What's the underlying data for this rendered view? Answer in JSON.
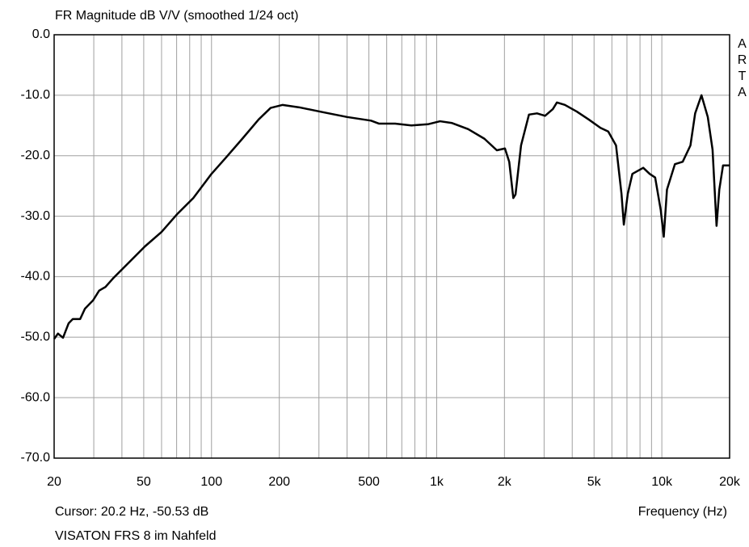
{
  "chart_data": {
    "type": "line",
    "title": "FR Magnitude dB V/V (smoothed 1/24 oct)",
    "watermark": "ARTA",
    "cursor_text": "Cursor: 20.2 Hz, -50.53 dB",
    "xlabel": "Frequency (Hz)",
    "footer": "VISATON FRS 8 im Nahfeld",
    "xscale": "log",
    "grid": true,
    "color": "#000000",
    "xlim": [
      20,
      20000
    ],
    "ylim": [
      -70,
      0
    ],
    "xticks": [
      20,
      50,
      100,
      200,
      500,
      {
        "value": 1000,
        "label": "1k"
      },
      {
        "value": 2000,
        "label": "2k"
      },
      {
        "value": 5000,
        "label": "5k"
      },
      {
        "value": 10000,
        "label": "10k"
      },
      {
        "value": 20000,
        "label": "20k"
      }
    ],
    "x_minor_ticks": [
      30,
      40,
      60,
      70,
      80,
      90,
      300,
      400,
      600,
      700,
      800,
      900,
      3000,
      4000,
      6000,
      7000,
      8000,
      9000
    ],
    "yticks": [
      {
        "value": 0,
        "label": "0.0"
      },
      {
        "value": -10,
        "label": "-10.0"
      },
      {
        "value": -20,
        "label": "-20.0"
      },
      {
        "value": -30,
        "label": "-30.0"
      },
      {
        "value": -40,
        "label": "-40.0"
      },
      {
        "value": -50,
        "label": "-50.0"
      },
      {
        "value": -60,
        "label": "-60.0"
      },
      {
        "value": -70,
        "label": "-70.0"
      }
    ],
    "x": [
      20,
      20.8,
      21.9,
      23.2,
      24.2,
      26.1,
      27.4,
      29.8,
      31.7,
      33.8,
      36.5,
      43.1,
      50.6,
      60,
      70.6,
      83,
      100,
      116,
      137,
      162,
      183,
      207,
      245,
      312,
      400,
      511,
      555,
      654,
      773,
      914,
      1035,
      1170,
      1380,
      1630,
      1850,
      2010,
      2100,
      2190,
      2240,
      2370,
      2570,
      2790,
      3030,
      3280,
      3420,
      3710,
      4190,
      4730,
      5340,
      5780,
      6260,
      6620,
      6780,
      7060,
      7400,
      8270,
      8830,
      9340,
      9890,
      10200,
      10540,
      11430,
      12380,
      13400,
      14060,
      15000,
      16000,
      16800,
      17500,
      18000,
      18700,
      20000
    ],
    "values": [
      -50.3,
      -49.4,
      -50.1,
      -47.7,
      -47,
      -47,
      -45.3,
      -43.9,
      -42.3,
      -41.7,
      -40.3,
      -37.6,
      -35,
      -32.6,
      -29.6,
      -27,
      -23,
      -20.3,
      -17.2,
      -14,
      -12.1,
      -11.6,
      -12,
      -12.8,
      -13.6,
      -14.2,
      -14.7,
      -14.7,
      -15,
      -14.8,
      -14.3,
      -14.6,
      -15.6,
      -17.2,
      -19.1,
      -18.8,
      -21,
      -27,
      -26.4,
      -18.3,
      -13.2,
      -13,
      -13.4,
      -12.3,
      -11.2,
      -11.6,
      -12.7,
      -14,
      -15.4,
      -16,
      -18.3,
      -26.3,
      -31.4,
      -26.3,
      -23,
      -22,
      -23,
      -23.6,
      -29,
      -33.4,
      -25.6,
      -21.4,
      -21,
      -18.3,
      -13,
      -10,
      -13.6,
      -19,
      -31.6,
      -25.6,
      -21.6,
      -21.6
    ]
  }
}
